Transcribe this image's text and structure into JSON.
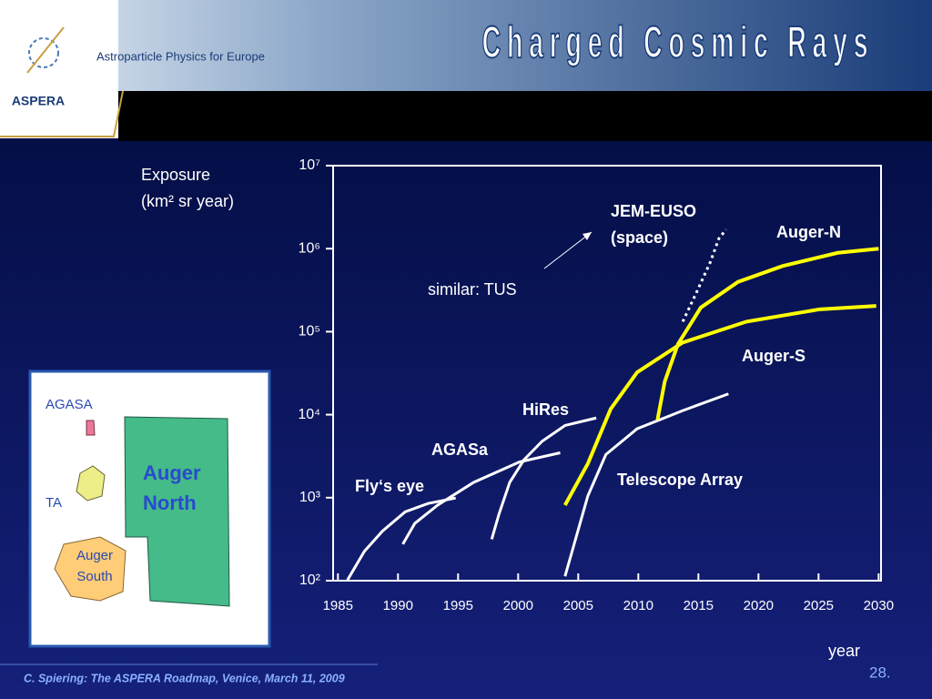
{
  "header": {
    "logo": "ASPERA",
    "tagline": "Astroparticle Physics for Europe",
    "title": "Charged Cosmic Rays"
  },
  "chart_data": {
    "type": "line",
    "ylabel": [
      "Exposure",
      "(km² sr year)"
    ],
    "xlabel": "year",
    "xlim": [
      1984.6,
      2030.2
    ],
    "ylim": [
      100,
      10000000
    ],
    "log_y": true,
    "xticks": [
      1985,
      1990,
      1995,
      2000,
      2005,
      2010,
      2015,
      2020,
      2025,
      2030
    ],
    "yticks": [
      {
        "value": 100,
        "label": "10²"
      },
      {
        "value": 1000,
        "label": "10³"
      },
      {
        "value": 10000,
        "label": "10⁴"
      },
      {
        "value": 100000,
        "label": "10⁵"
      },
      {
        "value": 1000000,
        "label": "10⁶"
      },
      {
        "value": 10000000,
        "label": "10⁷"
      }
    ],
    "series": [
      {
        "name": "Fly‘s eye",
        "color": "#ffffff",
        "x": [
          1985.8,
          1987.2,
          1988.7,
          1990.6,
          1992.5,
          1994.8
        ],
        "values": [
          102,
          226,
          395,
          676,
          851,
          990
        ]
      },
      {
        "name": "AGASa",
        "color": "#ffffff",
        "x": [
          1990.4,
          1991.4,
          1993.3,
          1996.3,
          2000.1,
          2003.5
        ],
        "values": [
          275,
          490,
          813,
          1530,
          2690,
          3470
        ]
      },
      {
        "name": "HiRes",
        "color": "#ffffff",
        "x": [
          1997.8,
          1998.4,
          1999.3,
          2000.5,
          2002.0,
          2003.9,
          2006.5
        ],
        "values": [
          316,
          631,
          1530,
          2880,
          4790,
          7410,
          9120
        ]
      },
      {
        "name": "Telescope Array",
        "color": "#ffffff",
        "x": [
          2003.9,
          2004.6,
          2005.8,
          2007.3,
          2009.9,
          2013.7,
          2017.5
        ],
        "values": [
          113,
          257,
          1050,
          3310,
          6760,
          11200,
          17800
        ]
      },
      {
        "name": "Auger-S",
        "color": "#ffff00",
        "x": [
          2003.9,
          2005.8,
          2007.7,
          2009.9,
          2013.7,
          2019.0,
          2025.1,
          2029.8
        ],
        "values": [
          813,
          2570,
          11700,
          32400,
          74000,
          132000,
          186000,
          204000
        ]
      },
      {
        "name": "Auger-N",
        "color": "#ffff00",
        "x": [
          2011.6,
          2012.2,
          2013.3,
          2015.2,
          2018.3,
          2022.0,
          2026.6,
          2030.0
        ],
        "values": [
          8710,
          25100,
          70800,
          195000,
          398000,
          617000,
          891000,
          1000000
        ]
      },
      {
        "name": "JEM-EUSO",
        "color": "#ffffff",
        "line_style": "dotted",
        "x": [
          2013.7,
          2014.8,
          2016.0,
          2016.7,
          2017.3
        ],
        "values": [
          132000,
          288000,
          692000,
          1320000,
          1700000
        ]
      }
    ],
    "annotations": [
      "(space)",
      "similar: TUS"
    ]
  },
  "map": {
    "agasa": "AGASA",
    "ta": "TA",
    "auger_south": [
      "Auger",
      "South"
    ],
    "auger_north": [
      "Auger",
      "North"
    ]
  },
  "footer": {
    "credit": "C. Spiering: The ASPERA Roadmap, Venice,  March 11, 2009",
    "page": "28."
  }
}
